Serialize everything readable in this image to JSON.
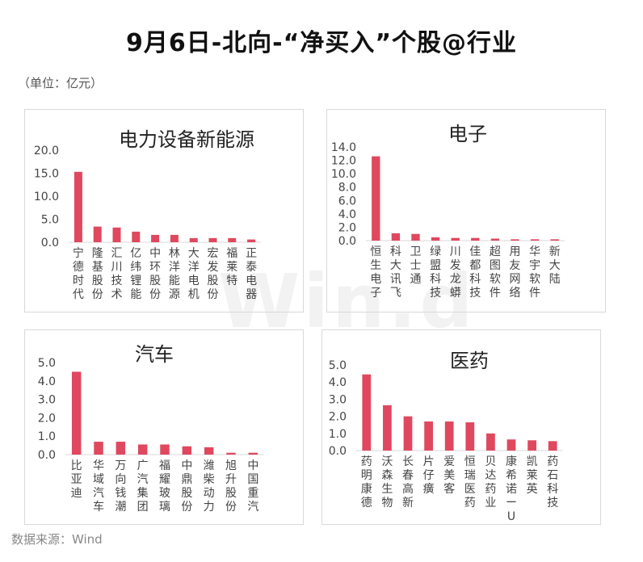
{
  "page": {
    "title": "9月6日-北向-“净买入”个股@行业",
    "unit": "（单位：亿元）",
    "source": "数据来源：Wind",
    "watermark": "Win.d",
    "bar_color": "#e0485f"
  },
  "chart_data": [
    {
      "type": "bar",
      "title": "电力设备新能源",
      "categories": [
        "宁德时代",
        "隆基股份",
        "汇川技术",
        "亿纬锂能",
        "中环股份",
        "林洋能源",
        "大洋电机",
        "宏发股份",
        "福莱特",
        "正泰电器"
      ],
      "values": [
        15.3,
        3.4,
        3.2,
        2.3,
        1.6,
        1.6,
        0.9,
        0.9,
        0.9,
        0.6
      ],
      "ylim": [
        0,
        20
      ],
      "yticks": [
        "0.0",
        "5.0",
        "10.0",
        "15.0",
        "20.0"
      ],
      "xlabel": "",
      "ylabel": ""
    },
    {
      "type": "bar",
      "title": "电子",
      "categories": [
        "恒生电子",
        "科大讯飞",
        "卫士通",
        "绿盟科技",
        "川发龙蟒",
        "佳都科技",
        "超图软件",
        "用友网络",
        "华宇软件",
        "新大陆"
      ],
      "values": [
        12.6,
        1.1,
        1.0,
        0.5,
        0.4,
        0.4,
        0.3,
        0.2,
        0.2,
        0.2
      ],
      "ylim": [
        0,
        14
      ],
      "yticks": [
        "0.0",
        "2.0",
        "4.0",
        "6.0",
        "8.0",
        "10.0",
        "12.0",
        "14.0"
      ],
      "xlabel": "",
      "ylabel": ""
    },
    {
      "type": "bar",
      "title": "汽车",
      "categories": [
        "比亚迪",
        "华域汽车",
        "万向钱潮",
        "广汽集团",
        "福耀玻璃",
        "中鼎股份",
        "潍柴动力",
        "旭升股份",
        "中国重汽"
      ],
      "values": [
        4.5,
        0.7,
        0.7,
        0.55,
        0.55,
        0.45,
        0.4,
        0.1,
        0.1
      ],
      "ylim": [
        0,
        5
      ],
      "yticks": [
        "0.0",
        "1.0",
        "2.0",
        "3.0",
        "4.0",
        "5.0"
      ],
      "xlabel": "",
      "ylabel": ""
    },
    {
      "type": "bar",
      "title": "医药",
      "categories": [
        "药明康德",
        "沃森生物",
        "长春高新",
        "片仔癀",
        "爱美客",
        "恒瑞医药",
        "贝达药业",
        "康希诺ーU",
        "凯莱英",
        "药石科技"
      ],
      "values": [
        4.45,
        2.65,
        2.0,
        1.7,
        1.7,
        1.65,
        1.0,
        0.65,
        0.6,
        0.55
      ],
      "ylim": [
        0,
        5
      ],
      "yticks": [
        "0.0",
        "1.0",
        "2.0",
        "3.0",
        "4.0",
        "5.0"
      ],
      "xlabel": "",
      "ylabel": ""
    }
  ]
}
